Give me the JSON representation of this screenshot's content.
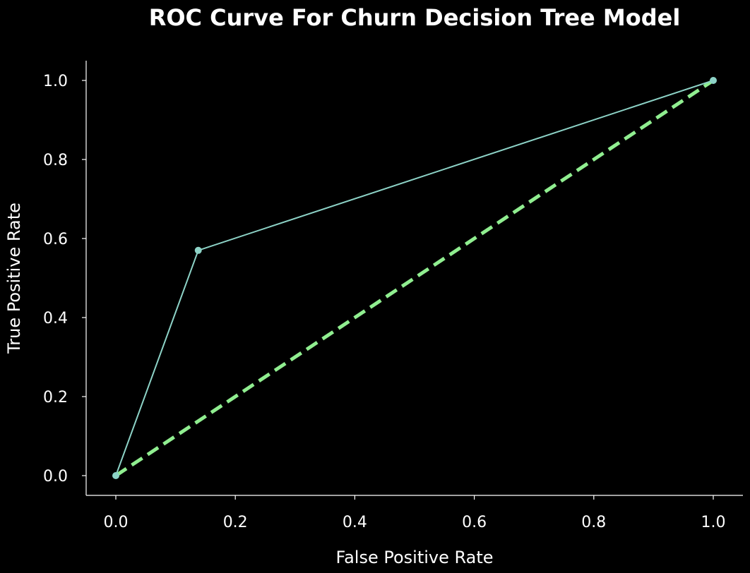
{
  "chart_data": {
    "type": "line",
    "title": "ROC Curve For Churn Decision Tree Model",
    "xlabel": "False Positive Rate",
    "ylabel": "True Positive Rate",
    "xlim": [
      -0.05,
      1.05
    ],
    "ylim": [
      -0.05,
      1.05
    ],
    "xticks": [
      0.0,
      0.2,
      0.4,
      0.6,
      0.8,
      1.0
    ],
    "yticks": [
      0.0,
      0.2,
      0.4,
      0.6,
      0.8,
      1.0
    ],
    "xtick_labels": [
      "0.0",
      "0.2",
      "0.4",
      "0.6",
      "0.8",
      "1.0"
    ],
    "ytick_labels": [
      "0.0",
      "0.2",
      "0.4",
      "0.6",
      "0.8",
      "1.0"
    ],
    "grid": false,
    "legend": null,
    "series": [
      {
        "style": "solid",
        "markers": true,
        "color": "#8dd3c7",
        "x": [
          0.0,
          0.138,
          1.0
        ],
        "y": [
          0.0,
          0.57,
          1.0
        ]
      },
      {
        "style": "dashed",
        "markers": false,
        "color": "#90ee90",
        "x": [
          0.0,
          1.0
        ],
        "y": [
          0.0,
          1.0
        ]
      }
    ]
  },
  "colors": {
    "background": "#000000",
    "foreground": "#ffffff"
  }
}
